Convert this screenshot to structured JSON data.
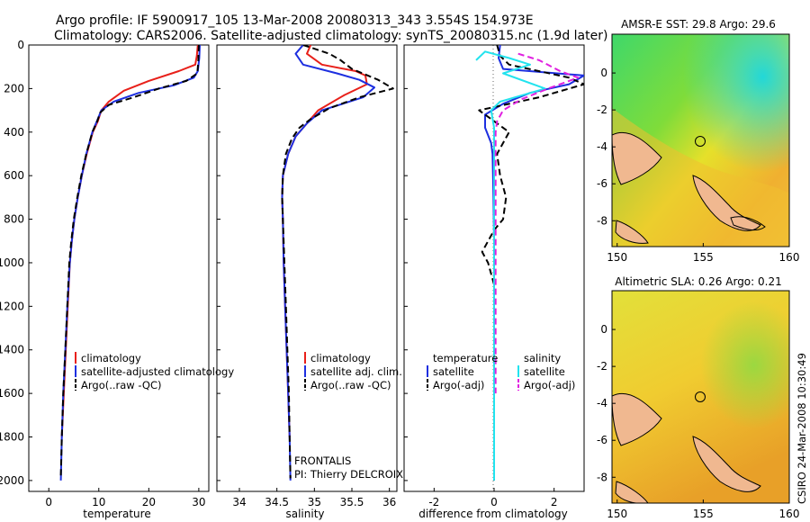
{
  "figure": {
    "title_line1": "Argo profile: IF 5900917_105 13-Mar-2008 20080313_343 3.554S 154.973E",
    "title_line2": "Climatology: CARS2006. Satellite-adjusted climatology: synTS_20080315.nc (1.9d later)",
    "side_caption": "CSIRO 24-Mar-2008 10:30:49",
    "pi_line1": "FRONTALIS",
    "pi_line2": "PI: Thierry DELCROIX"
  },
  "colors": {
    "climatology": "#e8201a",
    "satellite": "#1d2fe0",
    "argo": "#000000",
    "salinity_satellite": "#22e3ee",
    "salinity_argo": "#e020e0"
  },
  "chart_data": [
    {
      "type": "line",
      "name": "temperature-profile",
      "xlabel": "temperature",
      "ylabel": "",
      "xlim": [
        -4,
        32
      ],
      "ylim": [
        2050,
        0
      ],
      "xticks": [
        0,
        10,
        20,
        30
      ],
      "yticks": [
        0,
        200,
        400,
        600,
        800,
        1000,
        1200,
        1400,
        1600,
        1800,
        2000
      ],
      "series": [
        {
          "name": "climatology",
          "style": "solid",
          "color": "#e8201a",
          "points": [
            [
              29.8,
              0
            ],
            [
              29.6,
              50
            ],
            [
              29.3,
              90
            ],
            [
              26,
              120
            ],
            [
              20,
              165
            ],
            [
              15,
              210
            ],
            [
              12,
              260
            ],
            [
              10.5,
              300
            ],
            [
              9.8,
              350
            ],
            [
              8.8,
              400
            ],
            [
              7.6,
              500
            ],
            [
              6.6,
              600
            ],
            [
              5.8,
              700
            ],
            [
              5.1,
              800
            ],
            [
              4.6,
              900
            ],
            [
              4.2,
              1000
            ],
            [
              3.8,
              1200
            ],
            [
              3.4,
              1400
            ],
            [
              3.0,
              1600
            ],
            [
              2.6,
              1800
            ]
          ]
        },
        {
          "name": "satellite-adjusted climatology",
          "style": "solid",
          "color": "#1d2fe0",
          "points": [
            [
              30.2,
              0
            ],
            [
              30.1,
              60
            ],
            [
              29.8,
              120
            ],
            [
              29.0,
              150
            ],
            [
              25,
              185
            ],
            [
              18,
              220
            ],
            [
              13,
              260
            ],
            [
              10.5,
              300
            ],
            [
              9.6,
              350
            ],
            [
              8.7,
              400
            ],
            [
              7.5,
              500
            ],
            [
              6.6,
              600
            ],
            [
              5.8,
              700
            ],
            [
              5.1,
              800
            ],
            [
              4.6,
              900
            ],
            [
              4.2,
              1000
            ],
            [
              3.7,
              1200
            ],
            [
              3.3,
              1400
            ],
            [
              2.9,
              1600
            ],
            [
              2.6,
              1800
            ],
            [
              2.4,
              2000
            ]
          ]
        },
        {
          "name": "Argo(..raw -QC)",
          "style": "dashed",
          "color": "#000000",
          "points": [
            [
              30.0,
              0
            ],
            [
              29.9,
              80
            ],
            [
              29.7,
              130
            ],
            [
              27.5,
              165
            ],
            [
              22,
              200
            ],
            [
              17,
              240
            ],
            [
              12,
              275
            ],
            [
              10.3,
              310
            ],
            [
              9.7,
              350
            ],
            [
              8.7,
              400
            ],
            [
              7.5,
              500
            ],
            [
              6.5,
              600
            ],
            [
              5.7,
              700
            ],
            [
              5.0,
              800
            ],
            [
              4.5,
              900
            ],
            [
              4.1,
              1000
            ],
            [
              3.7,
              1200
            ],
            [
              3.3,
              1400
            ],
            [
              2.9,
              1600
            ],
            [
              2.6,
              1800
            ],
            [
              2.4,
              1980
            ]
          ]
        }
      ],
      "legend": {
        "position": "lower-right",
        "entries": [
          "climatology",
          "satellite-adjusted climatology",
          "Argo(..raw -QC)"
        ]
      }
    },
    {
      "type": "line",
      "name": "salinity-profile",
      "xlabel": "salinity",
      "ylabel": "",
      "xlim": [
        33.7,
        36.1
      ],
      "ylim": [
        2050,
        0
      ],
      "xticks": [
        34,
        34.5,
        35,
        35.5,
        36
      ],
      "series": [
        {
          "name": "climatology",
          "style": "solid",
          "color": "#e8201a",
          "points": [
            [
              34.95,
              0
            ],
            [
              34.9,
              40
            ],
            [
              35.1,
              90
            ],
            [
              35.55,
              120
            ],
            [
              35.68,
              140
            ],
            [
              35.7,
              180
            ],
            [
              35.4,
              230
            ],
            [
              35.05,
              300
            ],
            [
              34.9,
              360
            ],
            [
              34.75,
              420
            ],
            [
              34.65,
              500
            ],
            [
              34.58,
              600
            ],
            [
              34.57,
              700
            ],
            [
              34.58,
              800
            ],
            [
              34.59,
              1000
            ],
            [
              34.61,
              1200
            ],
            [
              34.63,
              1400
            ],
            [
              34.65,
              1600
            ],
            [
              34.67,
              1800
            ]
          ]
        },
        {
          "name": "satellite adj. clim.",
          "style": "solid",
          "color": "#1d2fe0",
          "points": [
            [
              34.85,
              0
            ],
            [
              34.75,
              40
            ],
            [
              34.85,
              90
            ],
            [
              35.3,
              130
            ],
            [
              35.6,
              160
            ],
            [
              35.8,
              195
            ],
            [
              35.65,
              240
            ],
            [
              35.1,
              300
            ],
            [
              34.9,
              360
            ],
            [
              34.75,
              420
            ],
            [
              34.65,
              500
            ],
            [
              34.58,
              600
            ],
            [
              34.57,
              700
            ],
            [
              34.58,
              800
            ],
            [
              34.59,
              1000
            ],
            [
              34.61,
              1200
            ],
            [
              34.63,
              1400
            ],
            [
              34.65,
              1600
            ],
            [
              34.67,
              1800
            ],
            [
              34.68,
              2000
            ]
          ]
        },
        {
          "name": "Argo(..raw -QC)",
          "style": "dashed",
          "color": "#000000",
          "points": [
            [
              34.85,
              0
            ],
            [
              35.2,
              40
            ],
            [
              35.35,
              70
            ],
            [
              35.5,
              110
            ],
            [
              35.85,
              160
            ],
            [
              36.05,
              200
            ],
            [
              35.6,
              240
            ],
            [
              35.2,
              290
            ],
            [
              34.95,
              340
            ],
            [
              34.8,
              380
            ],
            [
              34.7,
              430
            ],
            [
              34.62,
              500
            ],
            [
              34.58,
              600
            ],
            [
              34.57,
              700
            ],
            [
              34.58,
              800
            ],
            [
              34.6,
              1000
            ],
            [
              34.62,
              1200
            ],
            [
              34.64,
              1400
            ],
            [
              34.66,
              1600
            ],
            [
              34.67,
              1800
            ],
            [
              34.68,
              1990
            ]
          ]
        }
      ],
      "legend": {
        "position": "lower-right",
        "entries": [
          "climatology",
          "satellite adj. clim.",
          "Argo(..raw -QC)"
        ]
      }
    },
    {
      "type": "line",
      "name": "difference-profile",
      "xlabel": "difference from climatology",
      "ylabel": "",
      "xlim": [
        -3,
        3
      ],
      "ylim": [
        2050,
        0
      ],
      "xticks": [
        -2,
        0,
        2
      ],
      "series": [
        {
          "name": "temperature satellite",
          "style": "solid",
          "color": "#1d2fe0",
          "points": [
            [
              0.2,
              0
            ],
            [
              0.15,
              60
            ],
            [
              0.3,
              110
            ],
            [
              3,
              140
            ],
            [
              2.5,
              180
            ],
            [
              1.2,
              220
            ],
            [
              0.3,
              270
            ],
            [
              -0.3,
              320
            ],
            [
              -0.3,
              380
            ],
            [
              -0.1,
              450
            ],
            [
              -0.05,
              500
            ],
            [
              -0.02,
              700
            ],
            [
              0,
              900
            ],
            [
              0,
              1200
            ],
            [
              0,
              1600
            ],
            [
              0,
              2000
            ]
          ]
        },
        {
          "name": "temperature Argo(-adj)",
          "style": "dashed",
          "color": "#000000",
          "points": [
            [
              0.1,
              0
            ],
            [
              0.2,
              50
            ],
            [
              0.5,
              90
            ],
            [
              2.5,
              150
            ],
            [
              3,
              180
            ],
            [
              1.5,
              240
            ],
            [
              -0.5,
              300
            ],
            [
              -0.2,
              330
            ],
            [
              0.5,
              400
            ],
            [
              0.3,
              450
            ],
            [
              0.1,
              500
            ],
            [
              0.2,
              600
            ],
            [
              0.4,
              700
            ],
            [
              0.3,
              800
            ],
            [
              0,
              850
            ],
            [
              -0.4,
              950
            ],
            [
              -0.2,
              1000
            ],
            [
              0,
              1100
            ],
            [
              0,
              1400
            ],
            [
              0,
              1700
            ],
            [
              0,
              2000
            ]
          ]
        },
        {
          "name": "salinity satellite",
          "style": "solid",
          "color": "#22e3ee",
          "points": [
            [
              -0.6,
              70
            ],
            [
              -0.3,
              30
            ],
            [
              0.5,
              60
            ],
            [
              1.2,
              90
            ],
            [
              0.3,
              130
            ],
            [
              1.7,
              200
            ],
            [
              0.2,
              260
            ],
            [
              -0.1,
              300
            ],
            [
              0,
              380
            ],
            [
              0,
              500
            ],
            [
              0,
              800
            ],
            [
              0,
              1200
            ],
            [
              0,
              1600
            ],
            [
              0,
              2000
            ]
          ]
        },
        {
          "name": "salinity Argo(-adj)",
          "style": "dashed",
          "color": "#e020e0",
          "points": [
            [
              0.8,
              40
            ],
            [
              1.5,
              70
            ],
            [
              2.2,
              120
            ],
            [
              2.8,
              150
            ],
            [
              1.8,
              200
            ],
            [
              0.9,
              250
            ],
            [
              0.3,
              300
            ],
            [
              0.1,
              350
            ],
            [
              0.05,
              400
            ],
            [
              0.05,
              600
            ],
            [
              0.05,
              800
            ],
            [
              0.05,
              1100
            ],
            [
              0.05,
              1400
            ],
            [
              0.05,
              1600
            ]
          ]
        }
      ],
      "legend": {
        "position": "lower-center",
        "headers": [
          "temperature",
          "salinity"
        ],
        "entries": [
          "satellite",
          "Argo(-adj)",
          "satellite",
          "Argo(-adj)"
        ]
      }
    },
    {
      "type": "heatmap",
      "name": "sst-map",
      "title": "AMSR-E SST: 29.8  Argo: 29.6",
      "xlim": [
        149.7,
        160
      ],
      "ylim": [
        -9.4,
        2.1
      ],
      "xticks": [
        150,
        155,
        160
      ],
      "yticks": [
        0,
        -2,
        -4,
        -6,
        -8
      ],
      "marker": {
        "lon": 154.97,
        "lat": -3.55
      }
    },
    {
      "type": "heatmap",
      "name": "sla-map",
      "title": "Altimetric SLA: 0.26  Argo: 0.21",
      "xlim": [
        149.7,
        160
      ],
      "ylim": [
        -9.4,
        2.1
      ],
      "xticks": [
        150,
        155,
        160
      ],
      "yticks": [
        0,
        -2,
        -4,
        -6,
        -8
      ],
      "marker": {
        "lon": 154.97,
        "lat": -3.55
      }
    }
  ]
}
